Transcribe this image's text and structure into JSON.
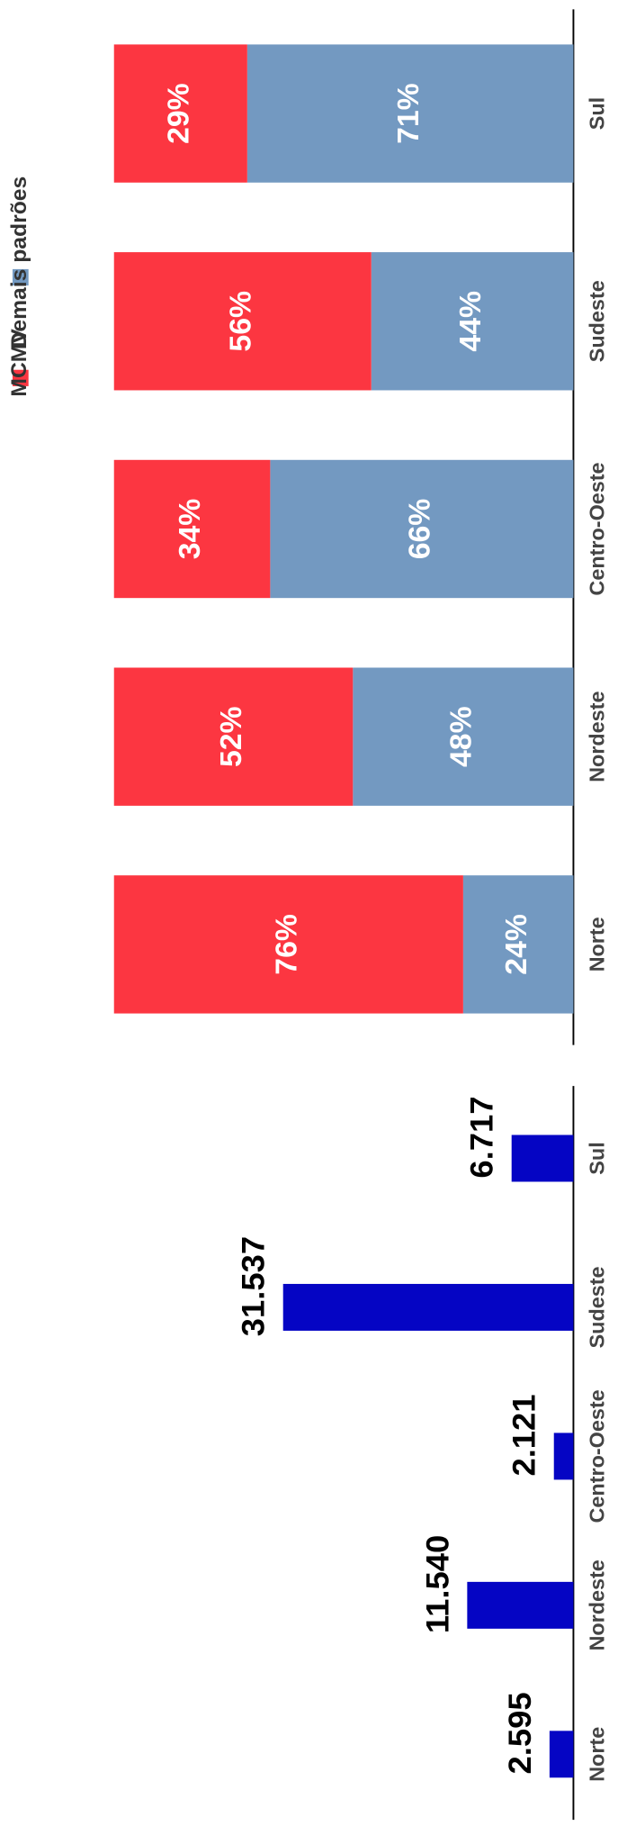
{
  "chart_data": [
    {
      "type": "stacked_bar",
      "categories": [
        "Norte",
        "Nordeste",
        "Centro-Oeste",
        "Sudeste",
        "Sul"
      ],
      "series": [
        {
          "name": "MCMV",
          "color": "#fc3641",
          "values": [
            76,
            52,
            34,
            56,
            29
          ],
          "value_labels": [
            "76%",
            "52%",
            "34%",
            "56%",
            "29%"
          ]
        },
        {
          "name": "Demais padrões",
          "color": "#7399c1",
          "values": [
            24,
            48,
            66,
            44,
            71
          ],
          "value_labels": [
            "24%",
            "48%",
            "66%",
            "44%",
            "71%"
          ]
        }
      ],
      "ylim": [
        0,
        100
      ]
    },
    {
      "type": "bar",
      "categories": [
        "Norte",
        "Nordeste",
        "Centro-Oeste",
        "Sudeste",
        "Sul"
      ],
      "values": [
        2595,
        11540,
        2121,
        31537,
        6717
      ],
      "value_labels": [
        "2.595",
        "11.540",
        "2.121",
        "31.537",
        "6.717"
      ],
      "color": "#0505c4",
      "ylim": [
        0,
        40000
      ]
    }
  ]
}
